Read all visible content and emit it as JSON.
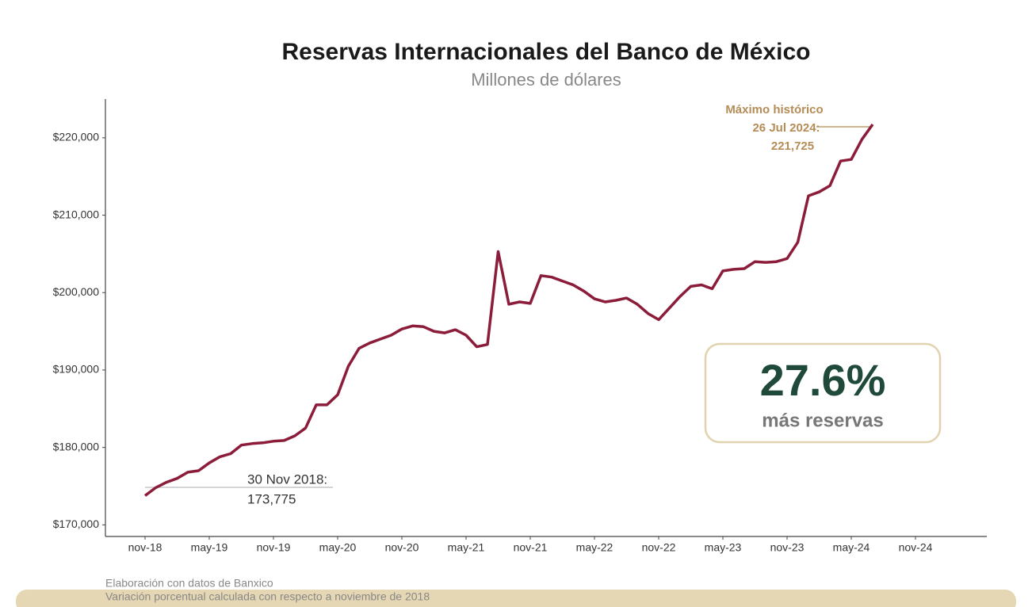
{
  "chart_data": {
    "type": "line",
    "title": "Reservas Internacionales del Banco de México",
    "subtitle": "Millones de dólares",
    "x": [
      "2018-11",
      "2018-12",
      "2019-01",
      "2019-02",
      "2019-03",
      "2019-04",
      "2019-05",
      "2019-06",
      "2019-07",
      "2019-08",
      "2019-09",
      "2019-10",
      "2019-11",
      "2019-12",
      "2020-01",
      "2020-02",
      "2020-03",
      "2020-04",
      "2020-05",
      "2020-06",
      "2020-07",
      "2020-08",
      "2020-09",
      "2020-10",
      "2020-11",
      "2020-12",
      "2021-01",
      "2021-02",
      "2021-03",
      "2021-04",
      "2021-05",
      "2021-06",
      "2021-07",
      "2021-08",
      "2021-09",
      "2021-10",
      "2021-11",
      "2021-12",
      "2022-01",
      "2022-02",
      "2022-03",
      "2022-04",
      "2022-05",
      "2022-06",
      "2022-07",
      "2022-08",
      "2022-09",
      "2022-10",
      "2022-11",
      "2022-12",
      "2023-01",
      "2023-02",
      "2023-03",
      "2023-04",
      "2023-05",
      "2023-06",
      "2023-07",
      "2023-08",
      "2023-09",
      "2023-10",
      "2023-11",
      "2023-12",
      "2024-01",
      "2024-02",
      "2024-03",
      "2024-04",
      "2024-05",
      "2024-06",
      "2024-07"
    ],
    "series": [
      {
        "name": "Reservas",
        "color": "#8b1c3a",
        "values": [
          173775,
          174800,
          175500,
          176000,
          176800,
          177000,
          178000,
          178800,
          179200,
          180300,
          180500,
          180600,
          180800,
          180900,
          181500,
          182500,
          185500,
          185500,
          186800,
          190500,
          192800,
          193500,
          194000,
          194500,
          195300,
          195700,
          195600,
          195000,
          194800,
          195200,
          194500,
          193000,
          193300,
          205300,
          198500,
          198800,
          198600,
          202200,
          202000,
          201500,
          201000,
          200200,
          199200,
          198800,
          199000,
          199300,
          198500,
          197300,
          196500,
          198000,
          199500,
          200800,
          201000,
          200500,
          202800,
          203000,
          203100,
          204000,
          203900,
          204000,
          204400,
          206500,
          212500,
          213000,
          213800,
          217000,
          217200,
          219800,
          221725
        ]
      }
    ],
    "xticks": [
      {
        "value": "2018-11",
        "label": "nov-18"
      },
      {
        "value": "2019-05",
        "label": "may-19"
      },
      {
        "value": "2019-11",
        "label": "nov-19"
      },
      {
        "value": "2020-05",
        "label": "may-20"
      },
      {
        "value": "2020-11",
        "label": "nov-20"
      },
      {
        "value": "2021-05",
        "label": "may-21"
      },
      {
        "value": "2021-11",
        "label": "nov-21"
      },
      {
        "value": "2022-05",
        "label": "may-22"
      },
      {
        "value": "2022-11",
        "label": "nov-22"
      },
      {
        "value": "2023-05",
        "label": "may-23"
      },
      {
        "value": "2023-11",
        "label": "nov-23"
      },
      {
        "value": "2024-05",
        "label": "may-24"
      },
      {
        "value": "2024-11",
        "label": "nov-24"
      }
    ],
    "ylim": [
      168500,
      225000
    ],
    "yticks": [
      {
        "value": 170000,
        "label": "$170,000"
      },
      {
        "value": 180000,
        "label": "$180,000"
      },
      {
        "value": 190000,
        "label": "$190,000"
      },
      {
        "value": 200000,
        "label": "$200,000"
      },
      {
        "value": 210000,
        "label": "$210,000"
      },
      {
        "value": 220000,
        "label": "$220,000"
      }
    ],
    "annotations": {
      "max": [
        "Máximo histórico",
        "26 Jul 2024:",
        "221,725"
      ],
      "start": [
        "30 Nov 2018:",
        "173,775"
      ]
    },
    "callout": {
      "value": "27.6%",
      "text": "más reservas"
    },
    "footnotes": [
      "Elaboración con datos de Banxico",
      "Variación porcentual calculada con respecto a noviembre de 2018"
    ]
  }
}
